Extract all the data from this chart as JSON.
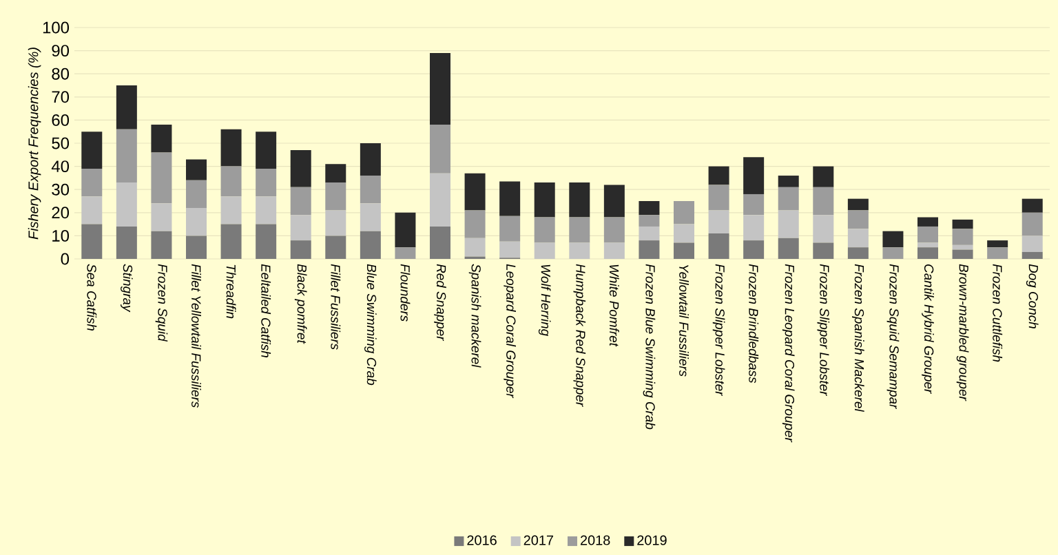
{
  "chart_data": {
    "type": "bar",
    "stacked": true,
    "ylabel": "Fishery Export Frequencies (%)",
    "categories": [
      "Sea Catfish",
      "Stingray",
      "Frozen Squid",
      "Fillet Yellowtail Fussiliers",
      "Threadfin",
      "Eeltailed Catfish",
      "Black pomfret",
      "Fillet Fussiliers",
      "Blue Swimming Crab",
      "Flounders",
      "Red Snapper",
      "Spanish mackerel",
      "Leopard Coral Grouper",
      "Wolf Herring",
      "Humpback Red Snapper",
      "White Pomfret",
      "Frozen Blue Swimming Crab",
      "Yellowtail Fussiliers",
      "Frozen Slipper Lobster",
      "Frozen Brindledbass",
      "Frozen Leopard Coral Grouper",
      "Frozen Slipper Lobster",
      "Frozen Spanish Mackerel",
      "Frozen Squid Semampar",
      "Cantik Hybrid Grouper",
      "Brown-marbled grouper",
      "Frozen Cuttlefish",
      "Dog Conch"
    ],
    "series": [
      {
        "name": "2016",
        "color": "#7a7a7a",
        "values": [
          15,
          14,
          12,
          10,
          15,
          15,
          8,
          10,
          12,
          0,
          14,
          1,
          0.5,
          0,
          0,
          0,
          8,
          7,
          11,
          8,
          9,
          7,
          5,
          0,
          5,
          4,
          0,
          3
        ]
      },
      {
        "name": "2017",
        "color": "#c4c4c4",
        "values": [
          12,
          19,
          12,
          12,
          12,
          12,
          11,
          11,
          12,
          0,
          23,
          8,
          7,
          7,
          7,
          7,
          6,
          8,
          10,
          11,
          12,
          12,
          8,
          0,
          2,
          2,
          0,
          7
        ]
      },
      {
        "name": "2018",
        "color": "#9c9c9c",
        "values": [
          12,
          23,
          22,
          12,
          13,
          12,
          12,
          12,
          12,
          5,
          21,
          12,
          11,
          11,
          11,
          11,
          5,
          10,
          11,
          9,
          10,
          12,
          8,
          5,
          7,
          7,
          5,
          10
        ]
      },
      {
        "name": "2019",
        "color": "#2a2a2a",
        "values": [
          16,
          19,
          12,
          9,
          16,
          16,
          16,
          8,
          14,
          15,
          31,
          16,
          15,
          15,
          15,
          14,
          6,
          0,
          8,
          16,
          5,
          9,
          5,
          7,
          4,
          4,
          3,
          6
        ]
      }
    ],
    "ylim": [
      0,
      100
    ],
    "yticks": [
      0,
      10,
      20,
      30,
      40,
      50,
      60,
      70,
      80,
      90,
      100
    ],
    "grid": "y",
    "legend": "bottom"
  }
}
